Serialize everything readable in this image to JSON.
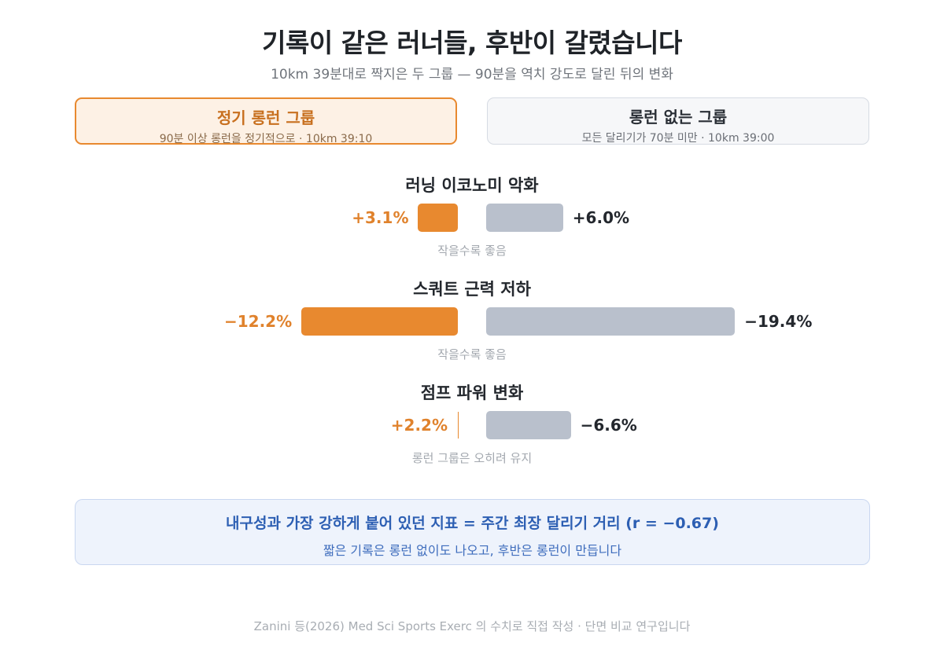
{
  "title": "기록이 같은 러너들, 후반이 갈렸습니다",
  "subtitle": "10km 39분대로 짝지은 두 그룹 — 90분을 역치 강도로 달린 뒤의 변화",
  "groups": [
    {
      "name": "정기 롱런 그룹",
      "desc": "90분 이상 롱런을 정기적으로 · 10km 39:10"
    },
    {
      "name": "롱런 없는 그룹",
      "desc": "모든 달리기가 70분 미만 · 10km 39:00"
    }
  ],
  "chart_data": {
    "type": "bar",
    "series": [
      {
        "name": "정기 롱런 그룹",
        "color": "#e8892f"
      },
      {
        "name": "롱런 없는 그룹",
        "color": "#b9c0cc"
      }
    ],
    "metrics": [
      {
        "title": "러닝 이코노미 악화",
        "values": [
          3.1,
          6.0
        ],
        "labels": [
          "+3.1%",
          "+6.0%"
        ],
        "note": "작을수록 좋음"
      },
      {
        "title": "스쿼트 근력 저하",
        "values": [
          -12.2,
          -19.4
        ],
        "labels": [
          "−12.2%",
          "−19.4%"
        ],
        "note": "작을수록 좋음"
      },
      {
        "title": "점프 파워 변화",
        "values": [
          2.2,
          -6.6
        ],
        "labels": [
          "+2.2%",
          "−6.6%"
        ],
        "note": "롱런 그룹은 오히려 유지"
      }
    ]
  },
  "insight": {
    "main": "내구성과 가장 강하게 붙어 있던 지표 = 주간 최장 달리기 거리 (r = −0.67)",
    "sub": "짧은 기록은 롱런 없이도 나오고, 후반은 롱런이 만듭니다"
  },
  "footer": "Zanini 등(2026) Med Sci Sports Exerc 의 수치로 직접 작성 · 단면 비교 연구입니다"
}
